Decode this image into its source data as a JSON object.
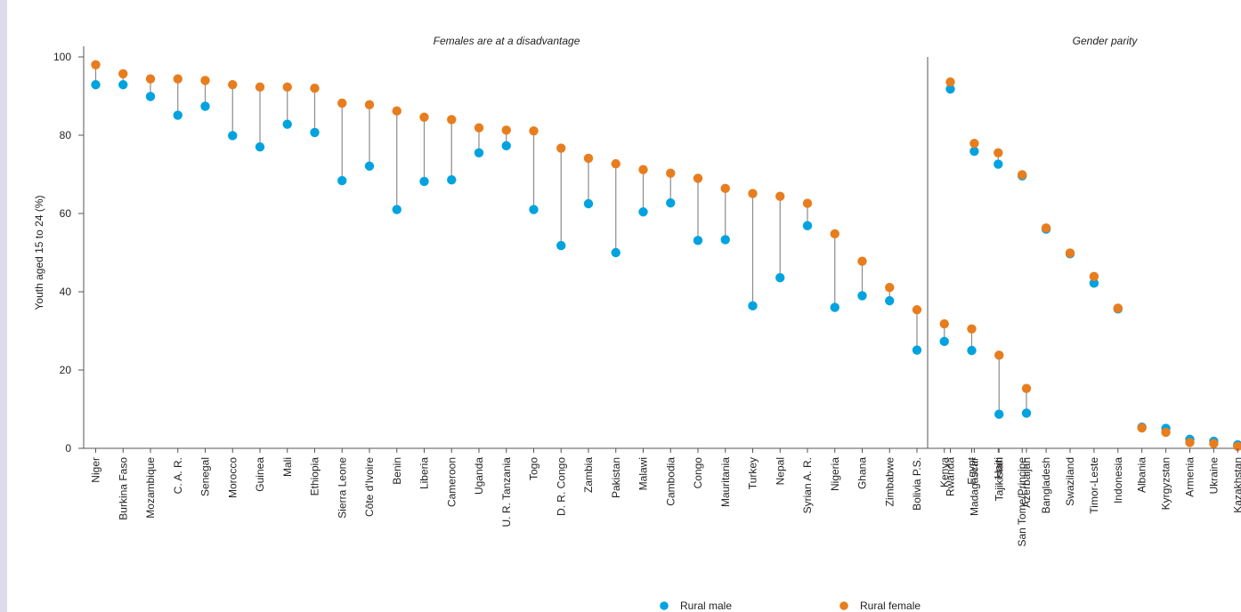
{
  "chart_data": {
    "type": "dot_plot",
    "ylabel": "Youth aged 15 to 24 (%)",
    "ylim": [
      0,
      100
    ],
    "yticks": [
      0,
      20,
      40,
      60,
      80,
      100
    ],
    "grid": false,
    "legend": {
      "placement": "bottom",
      "entries": [
        "Rural male",
        "Rural female"
      ]
    },
    "colors": {
      "male": "#00a3e0",
      "female": "#e87d1e",
      "connector": "#8c8c8c"
    },
    "panels": [
      {
        "title": "Females are at a disadvantage",
        "categories": [
          "Niger",
          "Burkina Faso",
          "Mozambique",
          "C. A. R.",
          "Senegal",
          "Morocco",
          "Guinea",
          "Mali",
          "Ethiopia",
          "Sierra Leone",
          "Côte d'Ivoire",
          "Benin",
          "Liberia",
          "Cameroon",
          "Uganda",
          "U. R. Tanzania",
          "Togo",
          "D. R. Congo",
          "Zambia",
          "Pakistan",
          "Malawi",
          "Cambodia",
          "Congo",
          "Mauritania",
          "Turkey",
          "Nepal",
          "Syrian A. R.",
          "Nigeria",
          "Ghana",
          "Zimbabwe",
          "Bolivia P.S.",
          "Kenya",
          "Egypt",
          "Tajikistan",
          "Azerbaijan"
        ],
        "series": [
          {
            "name": "Rural male",
            "values": [
              92.9,
              92.9,
              89.9,
              85.1,
              87.4,
              79.9,
              77.0,
              82.8,
              80.7,
              68.4,
              72.1,
              61.0,
              68.2,
              68.6,
              75.5,
              77.3,
              61.0,
              51.8,
              62.5,
              50.0,
              60.4,
              62.7,
              53.1,
              53.3,
              36.4,
              43.6,
              56.9,
              36.0,
              39.0,
              37.7,
              25.1,
              27.3,
              25.0,
              8.7,
              9.0
            ]
          },
          {
            "name": "Rural female",
            "values": [
              98.0,
              95.7,
              94.4,
              94.4,
              94.0,
              92.9,
              92.3,
              92.3,
              92.0,
              88.2,
              87.8,
              86.2,
              84.6,
              84.0,
              81.9,
              81.3,
              81.1,
              76.7,
              74.1,
              72.7,
              71.2,
              70.3,
              69.0,
              66.4,
              65.1,
              64.4,
              62.6,
              54.8,
              47.8,
              41.1,
              35.4,
              31.8,
              30.5,
              23.8,
              15.3
            ]
          }
        ]
      },
      {
        "title": "Gender parity",
        "categories": [
          "Rwanda",
          "Madagascar",
          "Haiti",
          "San Tome/Principe",
          "Bangladesh",
          "Swaziland",
          "Timor-Leste",
          "Indonesia",
          "Albania",
          "Kyrgyzstan",
          "Armenia",
          "Ukraine",
          "Kazakhstan"
        ],
        "series": [
          {
            "name": "Rural male",
            "values": [
              91.8,
              75.9,
              72.6,
              69.6,
              56.0,
              49.7,
              42.2,
              35.6,
              5.4,
              5.1,
              2.3,
              1.8,
              0.9
            ]
          },
          {
            "name": "Rural female",
            "values": [
              93.6,
              77.9,
              75.5,
              69.9,
              56.3,
              49.9,
              43.9,
              35.8,
              5.2,
              4.1,
              1.5,
              1.2,
              0.5
            ]
          }
        ]
      }
    ]
  }
}
